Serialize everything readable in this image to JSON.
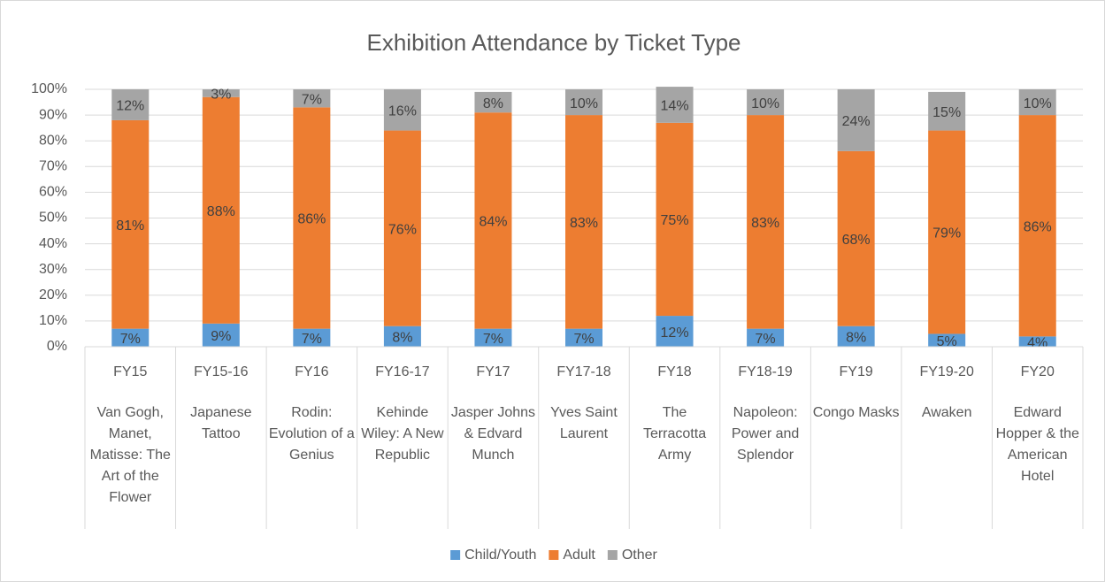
{
  "chart_data": {
    "type": "stacked_bar_100",
    "title": "Exhibition Attendance by Ticket Type",
    "categories": [
      "FY15",
      "FY15-16",
      "FY16",
      "FY16-17",
      "FY17",
      "FY17-18",
      "FY18",
      "FY18-19",
      "FY19",
      "FY19-20",
      "FY20"
    ],
    "exhibitions": [
      "Van Gogh, Manet, Matisse: The Art of the Flower",
      "Japanese Tattoo",
      "Rodin: Evolution of a Genius",
      "Kehinde Wiley: A New Republic",
      "Jasper Johns & Edvard Munch",
      "Yves Saint Laurent",
      "The Terracotta Army",
      "Napoleon: Power and Splendor",
      "Congo Masks",
      "Awaken",
      "Edward Hopper & the American Hotel"
    ],
    "series": [
      {
        "name": "Child/Youth",
        "color": "#5b9bd5",
        "values": [
          7,
          9,
          7,
          8,
          7,
          7,
          12,
          7,
          8,
          5,
          4
        ],
        "value_labels": [
          "7%",
          "9%",
          "7%",
          "8%",
          "7%",
          "7%",
          "12%",
          "7%",
          "8%",
          "5%",
          "4%"
        ]
      },
      {
        "name": "Adult",
        "color": "#ed7d31",
        "values": [
          81,
          88,
          86,
          76,
          84,
          83,
          75,
          83,
          68,
          79,
          86
        ],
        "value_labels": [
          "81%",
          "88%",
          "86%",
          "76%",
          "84%",
          "83%",
          "75%",
          "83%",
          "68%",
          "79%",
          "86%"
        ]
      },
      {
        "name": "Other",
        "color": "#a5a5a5",
        "values": [
          12,
          3,
          7,
          16,
          8,
          10,
          14,
          10,
          24,
          15,
          10
        ],
        "value_labels": [
          "12%",
          "3%",
          "7%",
          "16%",
          "8%",
          "10%",
          "14%",
          "10%",
          "24%",
          "15%",
          "10%"
        ]
      }
    ],
    "ylim": [
      0,
      100
    ],
    "yticks": [
      {
        "value": 0,
        "label": "0%"
      },
      {
        "value": 10,
        "label": "10%"
      },
      {
        "value": 20,
        "label": "20%"
      },
      {
        "value": 30,
        "label": "30%"
      },
      {
        "value": 40,
        "label": "40%"
      },
      {
        "value": 50,
        "label": "50%"
      },
      {
        "value": 60,
        "label": "60%"
      },
      {
        "value": 70,
        "label": "70%"
      },
      {
        "value": 80,
        "label": "80%"
      },
      {
        "value": 90,
        "label": "90%"
      },
      {
        "value": 100,
        "label": "100%"
      }
    ],
    "grid": true,
    "legend": "bottom"
  }
}
